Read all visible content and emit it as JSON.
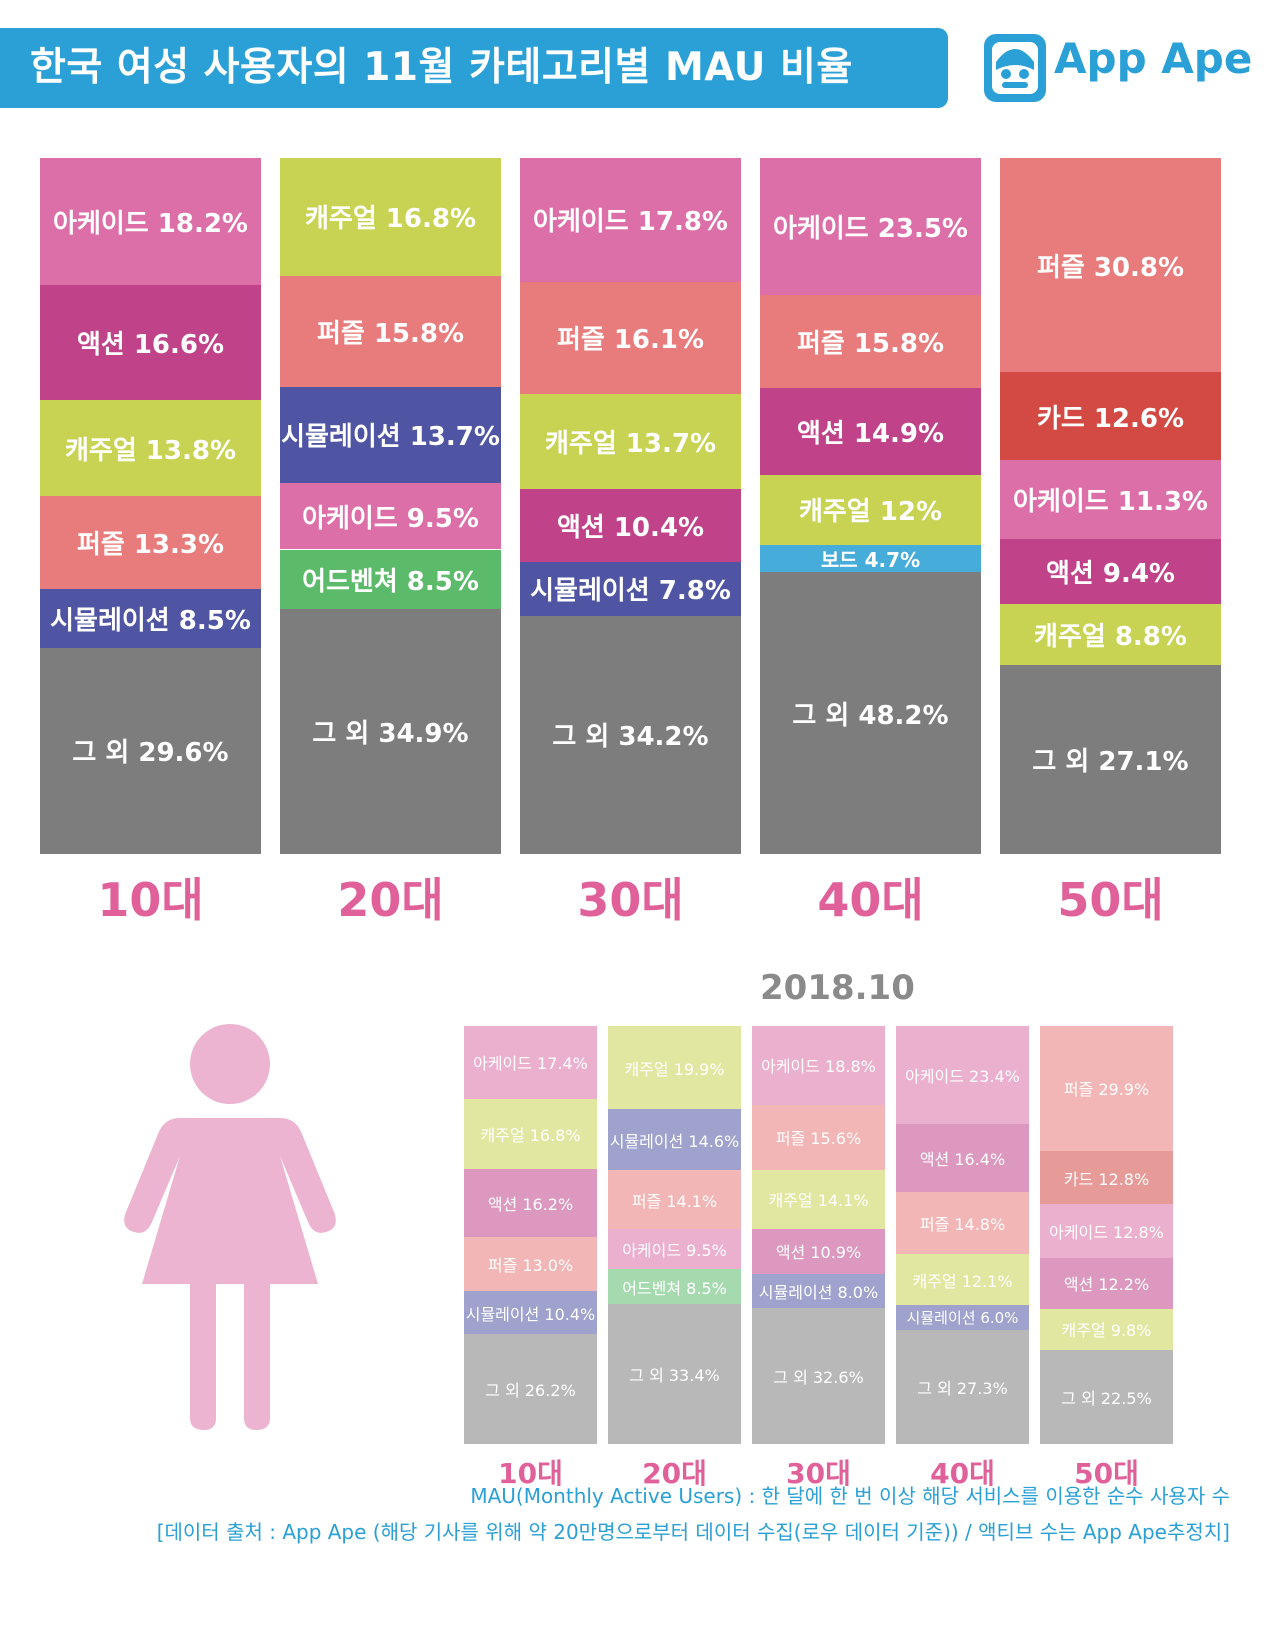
{
  "header": {
    "title": "한국 여성 사용자의 11월 카테고리별 MAU 비율"
  },
  "logo": {
    "text": "App Ape",
    "color": "#2aa0d6"
  },
  "colors": {
    "아케이드": "#dd6fa8",
    "액션": "#c0438a",
    "캐주얼": "#c8d354",
    "퍼즐": "#e87b7b",
    "시뮬레이션": "#4f55a3",
    "어드벤쳐": "#5cba6b",
    "보드": "#46acd9",
    "카드": "#d24a43",
    "그 외": "#7d7d7d"
  },
  "chart_data": [
    {
      "type": "bar",
      "stacked": true,
      "title": "",
      "categories": [
        "10대",
        "20대",
        "30대",
        "40대",
        "50대"
      ],
      "columns": [
        {
          "label": "10대",
          "segments": [
            {
              "name": "아케이드",
              "value": 18.2,
              "label": "아케이드 18.2%"
            },
            {
              "name": "액션",
              "value": 16.6,
              "label": "액션 16.6%"
            },
            {
              "name": "캐주얼",
              "value": 13.8,
              "label": "캐주얼 13.8%"
            },
            {
              "name": "퍼즐",
              "value": 13.3,
              "label": "퍼즐 13.3%"
            },
            {
              "name": "시뮬레이션",
              "value": 8.5,
              "label": "시뮬레이션 8.5%"
            },
            {
              "name": "그 외",
              "value": 29.6,
              "label": "그 외 29.6%"
            }
          ]
        },
        {
          "label": "20대",
          "segments": [
            {
              "name": "캐주얼",
              "value": 16.8,
              "label": "캐주얼 16.8%"
            },
            {
              "name": "퍼즐",
              "value": 15.8,
              "label": "퍼즐 15.8%"
            },
            {
              "name": "시뮬레이션",
              "value": 13.7,
              "label": "시뮬레이션 13.7%"
            },
            {
              "name": "아케이드",
              "value": 9.5,
              "label": "아케이드 9.5%"
            },
            {
              "name": "어드벤쳐",
              "value": 8.5,
              "label": "어드벤쳐 8.5%"
            },
            {
              "name": "그 외",
              "value": 34.9,
              "label": "그 외 34.9%"
            }
          ]
        },
        {
          "label": "30대",
          "segments": [
            {
              "name": "아케이드",
              "value": 17.8,
              "label": "아케이드 17.8%"
            },
            {
              "name": "퍼즐",
              "value": 16.1,
              "label": "퍼즐 16.1%"
            },
            {
              "name": "캐주얼",
              "value": 13.7,
              "label": "캐주얼 13.7%"
            },
            {
              "name": "액션",
              "value": 10.4,
              "label": "액션 10.4%"
            },
            {
              "name": "시뮬레이션",
              "value": 7.8,
              "label": "시뮬레이션 7.8%"
            },
            {
              "name": "그 외",
              "value": 34.2,
              "label": "그 외 34.2%"
            }
          ]
        },
        {
          "label": "40대",
          "segments": [
            {
              "name": "아케이드",
              "value": 23.5,
              "label": "아케이드 23.5%"
            },
            {
              "name": "퍼즐",
              "value": 15.8,
              "label": "퍼즐 15.8%"
            },
            {
              "name": "액션",
              "value": 14.9,
              "label": "액션 14.9%"
            },
            {
              "name": "캐주얼",
              "value": 12,
              "label": "캐주얼 12%"
            },
            {
              "name": "보드",
              "value": 4.7,
              "label": "보드 4.7%"
            },
            {
              "name": "그 외",
              "value": 48.2,
              "label": "그 외 48.2%"
            }
          ]
        },
        {
          "label": "50대",
          "segments": [
            {
              "name": "퍼즐",
              "value": 30.8,
              "label": "퍼즐 30.8%"
            },
            {
              "name": "카드",
              "value": 12.6,
              "label": "카드 12.6%"
            },
            {
              "name": "아케이드",
              "value": 11.3,
              "label": "아케이드 11.3%"
            },
            {
              "name": "액션",
              "value": 9.4,
              "label": "액션 9.4%"
            },
            {
              "name": "캐주얼",
              "value": 8.8,
              "label": "캐주얼 8.8%"
            },
            {
              "name": "그 외",
              "value": 27.1,
              "label": "그 외 27.1%"
            }
          ]
        }
      ]
    },
    {
      "type": "bar",
      "stacked": true,
      "title": "2018.10",
      "categories": [
        "10대",
        "20대",
        "30대",
        "40대",
        "50대"
      ],
      "columns": [
        {
          "label": "10대",
          "segments": [
            {
              "name": "아케이드",
              "value": 17.4,
              "label": "아케이드 17.4%"
            },
            {
              "name": "캐주얼",
              "value": 16.8,
              "label": "캐주얼 16.8%"
            },
            {
              "name": "액션",
              "value": 16.2,
              "label": "액션 16.2%"
            },
            {
              "name": "퍼즐",
              "value": 13.0,
              "label": "퍼즐 13.0%"
            },
            {
              "name": "시뮬레이션",
              "value": 10.4,
              "label": "시뮬레이션 10.4%"
            },
            {
              "name": "그 외",
              "value": 26.2,
              "label": "그 외 26.2%"
            }
          ]
        },
        {
          "label": "20대",
          "segments": [
            {
              "name": "캐주얼",
              "value": 19.9,
              "label": "캐주얼 19.9%"
            },
            {
              "name": "시뮬레이션",
              "value": 14.6,
              "label": "시뮬레이션 14.6%"
            },
            {
              "name": "퍼즐",
              "value": 14.1,
              "label": "퍼즐 14.1%"
            },
            {
              "name": "아케이드",
              "value": 9.5,
              "label": "아케이드 9.5%"
            },
            {
              "name": "어드벤쳐",
              "value": 8.5,
              "label": "어드벤쳐 8.5%"
            },
            {
              "name": "그 외",
              "value": 33.4,
              "label": "그 외 33.4%"
            }
          ]
        },
        {
          "label": "30대",
          "segments": [
            {
              "name": "아케이드",
              "value": 18.8,
              "label": "아케이드 18.8%"
            },
            {
              "name": "퍼즐",
              "value": 15.6,
              "label": "퍼즐 15.6%"
            },
            {
              "name": "캐주얼",
              "value": 14.1,
              "label": "캐주얼 14.1%"
            },
            {
              "name": "액션",
              "value": 10.9,
              "label": "액션 10.9%"
            },
            {
              "name": "시뮬레이션",
              "value": 8.0,
              "label": "시뮬레이션 8.0%"
            },
            {
              "name": "그 외",
              "value": 32.6,
              "label": "그 외 32.6%"
            }
          ]
        },
        {
          "label": "40대",
          "segments": [
            {
              "name": "아케이드",
              "value": 23.4,
              "label": "아케이드 23.4%"
            },
            {
              "name": "액션",
              "value": 16.4,
              "label": "액션 16.4%"
            },
            {
              "name": "퍼즐",
              "value": 14.8,
              "label": "퍼즐 14.8%"
            },
            {
              "name": "캐주얼",
              "value": 12.1,
              "label": "캐주얼 12.1%"
            },
            {
              "name": "시뮬레이션",
              "value": 6.0,
              "label": "시뮬레이션 6.0%"
            },
            {
              "name": "그 외",
              "value": 27.3,
              "label": "그 외 27.3%"
            }
          ]
        },
        {
          "label": "50대",
          "segments": [
            {
              "name": "퍼즐",
              "value": 29.9,
              "label": "퍼즐 29.9%"
            },
            {
              "name": "카드",
              "value": 12.8,
              "label": "카드 12.8%"
            },
            {
              "name": "아케이드",
              "value": 12.8,
              "label": "아케이드 12.8%"
            },
            {
              "name": "액션",
              "value": 12.2,
              "label": "액션 12.2%"
            },
            {
              "name": "캐주얼",
              "value": 9.8,
              "label": "캐주얼 9.8%"
            },
            {
              "name": "그 외",
              "value": 22.5,
              "label": "그 외 22.5%"
            }
          ]
        }
      ]
    }
  ],
  "footnotes": [
    "MAU(Monthly Active Users) : 한 달에 한 번 이상 해당 서비스를 이용한 순수 사용자 수",
    "[데이터 출처 : App Ape (해당 기사를 위해 약 20만명으로부터 데이터 수집(로우 데이터 기준)) / 액티브 수는 App Ape추정치]"
  ],
  "icons": {
    "logo": "app-ape-monkey-icon",
    "woman": "woman-silhouette-icon"
  }
}
